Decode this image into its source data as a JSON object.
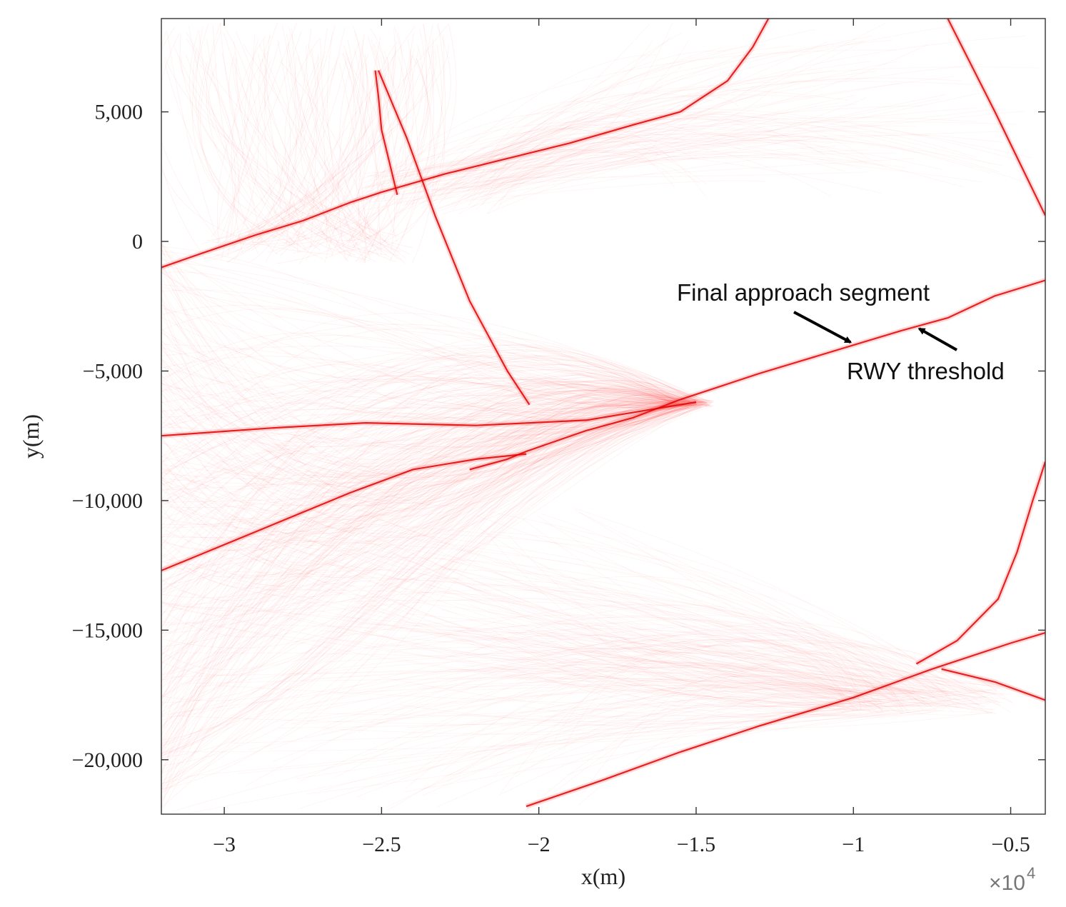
{
  "chart_data": {
    "type": "line",
    "xlabel": "x(m)",
    "ylabel": "y(m)",
    "xlim": [
      -32000,
      -3900
    ],
    "ylim": [
      -22100,
      8600
    ],
    "x_ticks": [
      -30000,
      -25000,
      -20000,
      -15000,
      -10000,
      -5000
    ],
    "x_tick_labels": [
      "−3",
      "−2.5",
      "−2",
      "−1.5",
      "−1",
      "−0.5"
    ],
    "x_exponent": {
      "base": "×10",
      "power": "4"
    },
    "y_ticks": [
      5000,
      0,
      -5000,
      -10000,
      -15000,
      -20000
    ],
    "y_tick_labels": [
      "5,000",
      "0",
      "−5,000",
      "−10,000",
      "−15,000",
      "−20,000"
    ],
    "grid": false,
    "colors": {
      "trajectory": "#ff2a2a",
      "dense": "#e00000",
      "annotation": "#000000",
      "axes": "#333333"
    },
    "series": [
      {
        "x": [
          -32000,
          -30700,
          -29000,
          -27500,
          -26000,
          -25000,
          -23000,
          -21000,
          -19000,
          -17000,
          -15500
        ],
        "y": [
          -1000,
          -450,
          250,
          800,
          1500,
          1900,
          2600,
          3200,
          3800,
          4500,
          5000
        ]
      },
      {
        "x": [
          -15500,
          -14000,
          -13200,
          -12700
        ],
        "y": [
          5000,
          6200,
          7500,
          8600
        ]
      },
      {
        "x": [
          -24500,
          -24700,
          -25000,
          -25100,
          -25200
        ],
        "y": [
          1800,
          2800,
          4300,
          5600,
          6600
        ]
      },
      {
        "x": [
          -25100,
          -24200,
          -23300,
          -22200,
          -21000,
          -20300
        ],
        "y": [
          6600,
          4000,
          1000,
          -2300,
          -5000,
          -6300
        ]
      },
      {
        "x": [
          -32000,
          -29000,
          -26000,
          -24000,
          -22000,
          -20400
        ],
        "y": [
          -12700,
          -11200,
          -9700,
          -8800,
          -8400,
          -8200
        ]
      },
      {
        "x": [
          -22200,
          -21000,
          -20400
        ],
        "y": [
          -8800,
          -8400,
          -8100
        ]
      },
      {
        "x": [
          -20400,
          -18500,
          -17000,
          -15500
        ],
        "y": [
          -8100,
          -7300,
          -6800,
          -6100
        ]
      },
      {
        "x": [
          -15500,
          -13000,
          -10000,
          -8500,
          -7000,
          -5500,
          -3900
        ],
        "y": [
          -6100,
          -5100,
          -4000,
          -3450,
          -2950,
          -2100,
          -1500
        ]
      },
      {
        "x": [
          -32000,
          -28500,
          -25500,
          -22000,
          -18500,
          -15000
        ],
        "y": [
          -7500,
          -7200,
          -7000,
          -7100,
          -6900,
          -6200
        ]
      },
      {
        "x": [
          -20400,
          -18000,
          -15500
        ],
        "y": [
          -21800,
          -20800,
          -19700
        ]
      },
      {
        "x": [
          -15500,
          -13000,
          -10000,
          -7500,
          -5000,
          -3900
        ],
        "y": [
          -19700,
          -18700,
          -17600,
          -16500,
          -15500,
          -15100
        ]
      },
      {
        "x": [
          -8000,
          -6700,
          -5400,
          -4800,
          -4300,
          -3900
        ],
        "y": [
          -16300,
          -15400,
          -13800,
          -12000,
          -10000,
          -8500
        ]
      },
      {
        "x": [
          -7200,
          -5500,
          -3900
        ],
        "y": [
          -16500,
          -17000,
          -17700
        ]
      },
      {
        "x": [
          -7000,
          -5500,
          -3900
        ],
        "y": [
          8600,
          5000,
          1000
        ]
      }
    ],
    "annotations": [
      {
        "text": "Final approach segment",
        "arrow_to": {
          "x": -10000,
          "y": -4000
        }
      },
      {
        "text": "RWY threshold",
        "arrow_to": {
          "x": -8000,
          "y": -3200
        }
      }
    ]
  }
}
